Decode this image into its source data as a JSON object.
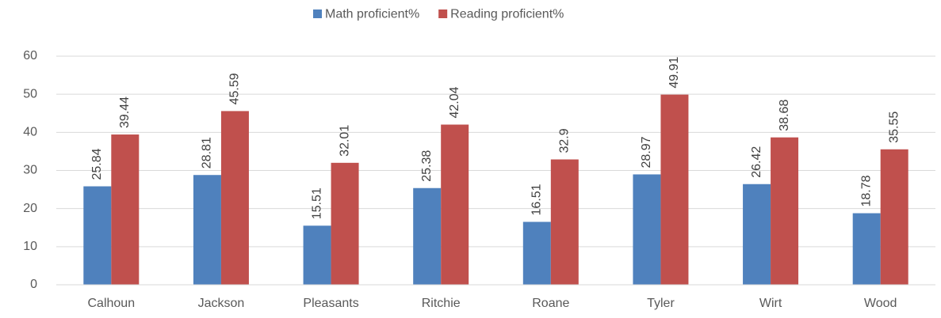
{
  "chart_data": {
    "type": "bar",
    "categories": [
      "Calhoun",
      "Jackson",
      "Pleasants",
      "Ritchie",
      "Roane",
      "Tyler",
      "Wirt",
      "Wood"
    ],
    "series": [
      {
        "name": "Math proficient%",
        "color": "#4f81bd",
        "values": [
          25.84,
          28.81,
          15.51,
          25.38,
          16.51,
          28.97,
          26.42,
          18.78
        ]
      },
      {
        "name": "Reading proficient%",
        "color": "#c0504d",
        "values": [
          39.44,
          45.59,
          32.01,
          42.04,
          32.9,
          49.91,
          38.68,
          35.55
        ]
      }
    ],
    "ylim": [
      0,
      60
    ],
    "yticks": [
      0,
      10,
      20,
      30,
      40,
      50,
      60
    ],
    "grid": true,
    "legend": "top"
  }
}
